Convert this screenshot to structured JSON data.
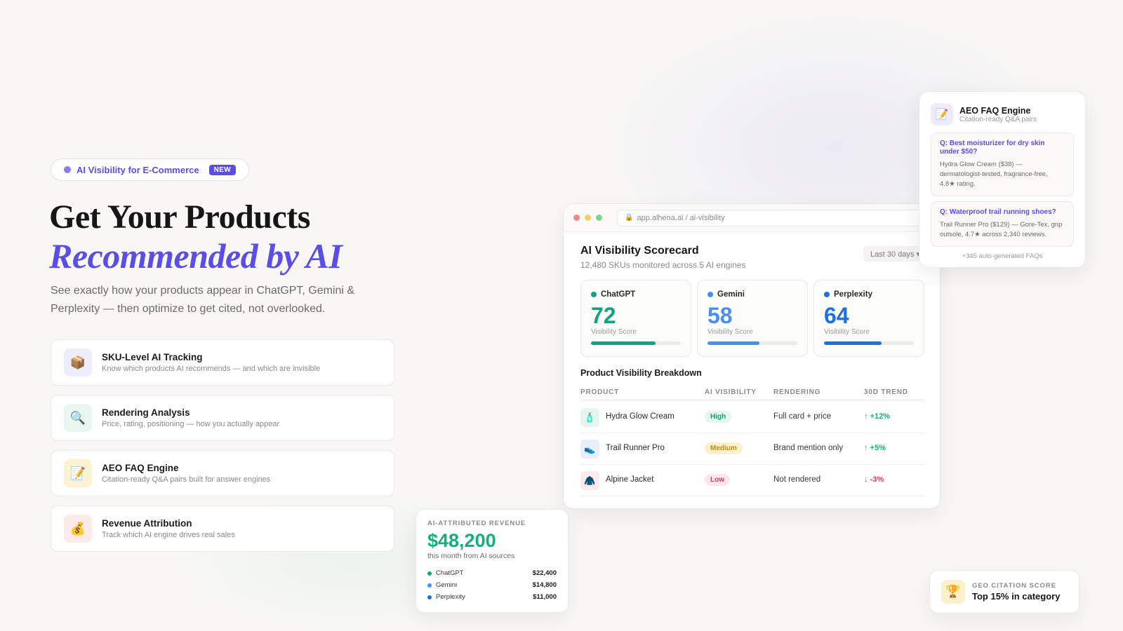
{
  "colors": {
    "accent": "#5b4ee6",
    "chatgpt": "#14a37f",
    "gemini": "#4a8ef0",
    "perplexity": "#1f6fe0",
    "positive": "#12b07a",
    "negative": "#e03b5a"
  },
  "hero": {
    "pill_text": "AI Visibility for E-Commerce",
    "pill_badge": "NEW",
    "title_line1": "Get Your Products",
    "title_line2": "Recommended by AI",
    "lead": "See exactly how your products appear in ChatGPT, Gemini & Perplexity — then optimize to get cited, not overlooked."
  },
  "features": [
    {
      "icon": "package-icon",
      "glyph": "📦",
      "title": "SKU-Level AI Tracking",
      "desc": "Know which products AI recommends — and which are invisible"
    },
    {
      "icon": "magnifier-icon",
      "glyph": "🔍",
      "title": "Rendering Analysis",
      "desc": "Price, rating, positioning — how you actually appear"
    },
    {
      "icon": "memo-icon",
      "glyph": "📝",
      "title": "AEO FAQ Engine",
      "desc": "Citation-ready Q&A pairs built for answer engines"
    },
    {
      "icon": "money-bag-icon",
      "glyph": "💰",
      "title": "Revenue Attribution",
      "desc": "Track which AI engine drives real sales"
    }
  ],
  "browser": {
    "url": "app.alhena.ai / ai-visibility",
    "title": "AI Visibility Scorecard",
    "subtitle": "12,480 SKUs monitored across 5 AI engines",
    "range": "Last 30 days ▾",
    "scores": [
      {
        "name": "ChatGPT",
        "value": "72",
        "label": "Visibility Score",
        "fill": 0.72
      },
      {
        "name": "Gemini",
        "value": "58",
        "label": "Visibility Score",
        "fill": 0.58
      },
      {
        "name": "Perplexity",
        "value": "64",
        "label": "Visibility Score",
        "fill": 0.64
      }
    ],
    "breakdown_title": "Product Visibility Breakdown",
    "columns": [
      "PRODUCT",
      "AI VISIBILITY",
      "RENDERING",
      "30D TREND"
    ],
    "rows": [
      {
        "icon": "lotion-bottle-icon",
        "glyph": "🧴",
        "product": "Hydra Glow Cream",
        "visibility": "High",
        "rendering": "Full card + price",
        "trend": "↑ +12%"
      },
      {
        "icon": "running-shoe-icon",
        "glyph": "👟",
        "product": "Trail Runner Pro",
        "visibility": "Medium",
        "rendering": "Brand mention only",
        "trend": "↑ +5%"
      },
      {
        "icon": "jacket-icon",
        "glyph": "🧥",
        "product": "Alpine Jacket",
        "visibility": "Low",
        "rendering": "Not rendered",
        "trend": "↓ -3%"
      }
    ]
  },
  "faq": {
    "icon": "memo-icon",
    "glyph": "📝",
    "title": "AEO FAQ Engine",
    "subtitle": "Citation-ready Q&A pairs",
    "items": [
      {
        "q": "Q: Best moisturizer for dry skin under $50?",
        "a": "Hydra Glow Cream ($38) — dermatologist-tested, fragrance-free, 4.8★ rating."
      },
      {
        "q": "Q: Waterproof trail running shoes?",
        "a": "Trail Runner Pro ($129) — Gore-Tex, grip outsole, 4.7★ across 2,340 reviews."
      }
    ],
    "more": "+345 auto-generated FAQs"
  },
  "revenue": {
    "label": "AI-ATTRIBUTED REVENUE",
    "value": "$48,200",
    "subtitle": "this month from AI sources",
    "rows": [
      {
        "name": "ChatGPT",
        "value": "$22,400"
      },
      {
        "name": "Gemini",
        "value": "$14,800"
      },
      {
        "name": "Perplexity",
        "value": "$11,000"
      }
    ]
  },
  "geo": {
    "icon": "trophy-icon",
    "glyph": "🏆",
    "label": "GEO CITATION SCORE",
    "value": "Top 15% in category"
  }
}
